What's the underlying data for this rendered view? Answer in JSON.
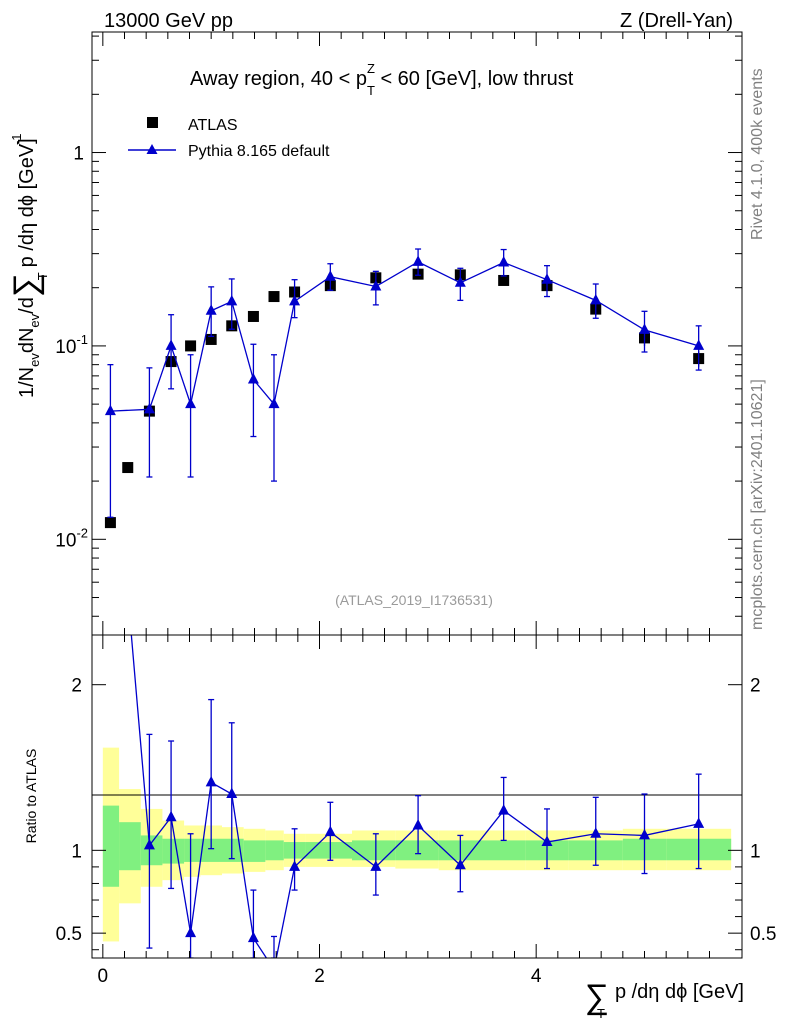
{
  "header": {
    "energy": "13000 GeV pp",
    "process": "Z (Drell-Yan)"
  },
  "side_labels": {
    "rivet": "Rivet 4.1.0,  400k events",
    "mcplots": "mcplots.cern.ch [arXiv:2401.10621]"
  },
  "analysis_ref": "(ATLAS_2019_I1736531)",
  "axis_labels": {
    "y_main": "1/N",
    "y_main_sub1": "ev",
    "y_main_mid": "dN",
    "y_main_sub2": "ev",
    "y_main_end": "/d",
    "y_main_sum": "∑",
    "y_main_pt": " p /dη dϕ  [GeV]",
    "y_main_pt_sub": "T",
    "y_main_pow": "-1",
    "y_ratio": "Ratio to ATLAS",
    "x_sum": "∑",
    "x_label": "p /dη dϕ [GeV]",
    "x_label_sub": "T"
  },
  "chart_data": [
    {
      "type": "scatter",
      "title": "Away region, 40 < p",
      "title_sub": "T",
      "title_sup": "Z",
      "title_end": " < 60 [GeV], low thrust",
      "yscale": "log",
      "xlim": [
        -0.1,
        5.9
      ],
      "ylim": [
        0.0032,
        4.2
      ],
      "y_ticks": [
        {
          "value": 0.01,
          "label": "10",
          "exp": "-2"
        },
        {
          "value": 0.1,
          "label": "10",
          "exp": "-1"
        },
        {
          "value": 1,
          "label": "1",
          "exp": ""
        }
      ],
      "legend": {
        "position": "top-left",
        "entries": [
          {
            "name": "ATLAS",
            "marker": "square",
            "color": "#000000"
          },
          {
            "name": "Pythia 8.165 default",
            "marker": "triangle",
            "color": "#0000cc"
          }
        ]
      },
      "series": [
        {
          "name": "ATLAS",
          "color": "#000000",
          "x": [
            0.07,
            0.23,
            0.43,
            0.63,
            0.81,
            1.0,
            1.19,
            1.39,
            1.58,
            1.77,
            2.1,
            2.52,
            2.91,
            3.3,
            3.7,
            4.1,
            4.55,
            5.0,
            5.5
          ],
          "y": [
            0.0122,
            0.0235,
            0.046,
            0.083,
            0.1,
            0.108,
            0.127,
            0.142,
            0.18,
            0.19,
            0.205,
            0.225,
            0.235,
            0.233,
            0.218,
            0.205,
            0.155,
            0.11,
            0.086
          ],
          "err_lo": [
            0.0005,
            0.0008,
            0.003,
            0.004,
            0.004,
            0.004,
            0.005,
            0.005,
            0.006,
            0.006,
            0.01,
            0.01,
            0.012,
            0.012,
            0.012,
            0.012,
            0.012,
            0.01,
            0.008
          ],
          "err_hi": [
            0.0005,
            0.0008,
            0.003,
            0.004,
            0.004,
            0.004,
            0.005,
            0.005,
            0.006,
            0.006,
            0.01,
            0.01,
            0.012,
            0.012,
            0.012,
            0.012,
            0.012,
            0.01,
            0.008
          ]
        },
        {
          "name": "Pythia 8.165 default",
          "color": "#0000cc",
          "x": [
            0.07,
            0.43,
            0.63,
            0.81,
            1.0,
            1.19,
            1.39,
            1.58,
            1.77,
            2.1,
            2.52,
            2.91,
            3.3,
            3.7,
            4.1,
            4.55,
            5.0,
            5.5
          ],
          "y": [
            0.046,
            0.047,
            0.1,
            0.05,
            0.152,
            0.17,
            0.067,
            0.05,
            0.17,
            0.228,
            0.203,
            0.272,
            0.212,
            0.27,
            0.22,
            0.172,
            0.121,
            0.1
          ],
          "err_lo": [
            0.033,
            0.026,
            0.04,
            0.029,
            0.04,
            0.048,
            0.033,
            0.03,
            0.03,
            0.034,
            0.04,
            0.04,
            0.04,
            0.04,
            0.04,
            0.033,
            0.028,
            0.025
          ],
          "err_hi": [
            0.034,
            0.03,
            0.045,
            0.04,
            0.05,
            0.052,
            0.035,
            0.04,
            0.05,
            0.038,
            0.04,
            0.045,
            0.04,
            0.045,
            0.04,
            0.037,
            0.03,
            0.027
          ]
        }
      ]
    },
    {
      "type": "line",
      "title": "Ratio to ATLAS",
      "xlim": [
        -0.1,
        5.9
      ],
      "ylim": [
        0.35,
        2.3
      ],
      "x_ticks": [
        0,
        2,
        4
      ],
      "y_ticks": [
        0.5,
        1,
        2
      ],
      "reference_line": 1,
      "bands": {
        "edges": [
          0,
          0.15,
          0.35,
          0.55,
          0.75,
          0.9,
          1.1,
          1.3,
          1.5,
          1.67,
          1.87,
          2.3,
          2.7,
          3.1,
          3.5,
          3.9,
          4.3,
          4.8,
          5.2,
          5.8
        ],
        "green_lo": [
          0.78,
          0.88,
          0.91,
          0.92,
          0.93,
          0.93,
          0.93,
          0.93,
          0.94,
          0.95,
          0.95,
          0.94,
          0.94,
          0.94,
          0.94,
          0.94,
          0.94,
          0.94,
          0.94
        ],
        "green_hi": [
          1.27,
          1.17,
          1.09,
          1.07,
          1.07,
          1.07,
          1.07,
          1.06,
          1.06,
          1.05,
          1.05,
          1.06,
          1.06,
          1.06,
          1.06,
          1.06,
          1.06,
          1.07,
          1.07
        ],
        "yellow_lo": [
          0.45,
          0.68,
          0.78,
          0.82,
          0.84,
          0.85,
          0.86,
          0.87,
          0.88,
          0.9,
          0.9,
          0.9,
          0.89,
          0.88,
          0.88,
          0.88,
          0.88,
          0.88,
          0.88
        ],
        "yellow_hi": [
          1.62,
          1.37,
          1.25,
          1.18,
          1.15,
          1.15,
          1.14,
          1.13,
          1.12,
          1.1,
          1.1,
          1.12,
          1.12,
          1.12,
          1.12,
          1.12,
          1.12,
          1.13,
          1.13
        ]
      },
      "series": [
        {
          "name": "Pythia 8.165 default / ATLAS",
          "color": "#0000cc",
          "x": [
            0.07,
            0.43,
            0.63,
            0.81,
            1.0,
            1.19,
            1.39,
            1.58,
            1.77,
            2.1,
            2.52,
            2.91,
            3.3,
            3.7,
            4.1,
            4.55,
            5.0,
            5.5
          ],
          "y": [
            3.77,
            1.03,
            1.2,
            0.5,
            1.41,
            1.34,
            0.47,
            0.28,
            0.9,
            1.11,
            0.9,
            1.15,
            0.91,
            1.24,
            1.05,
            1.1,
            1.09,
            1.16
          ],
          "err_lo": [
            0.0,
            0.62,
            0.43,
            0.25,
            0.4,
            0.39,
            0.23,
            0.15,
            0.14,
            0.17,
            0.17,
            0.17,
            0.16,
            0.18,
            0.16,
            0.19,
            0.23,
            0.27
          ],
          "err_hi": [
            0.0,
            0.67,
            0.46,
            0.6,
            0.5,
            0.43,
            0.29,
            0.2,
            0.23,
            0.18,
            0.2,
            0.18,
            0.18,
            0.2,
            0.2,
            0.22,
            0.25,
            0.3
          ]
        }
      ]
    }
  ]
}
